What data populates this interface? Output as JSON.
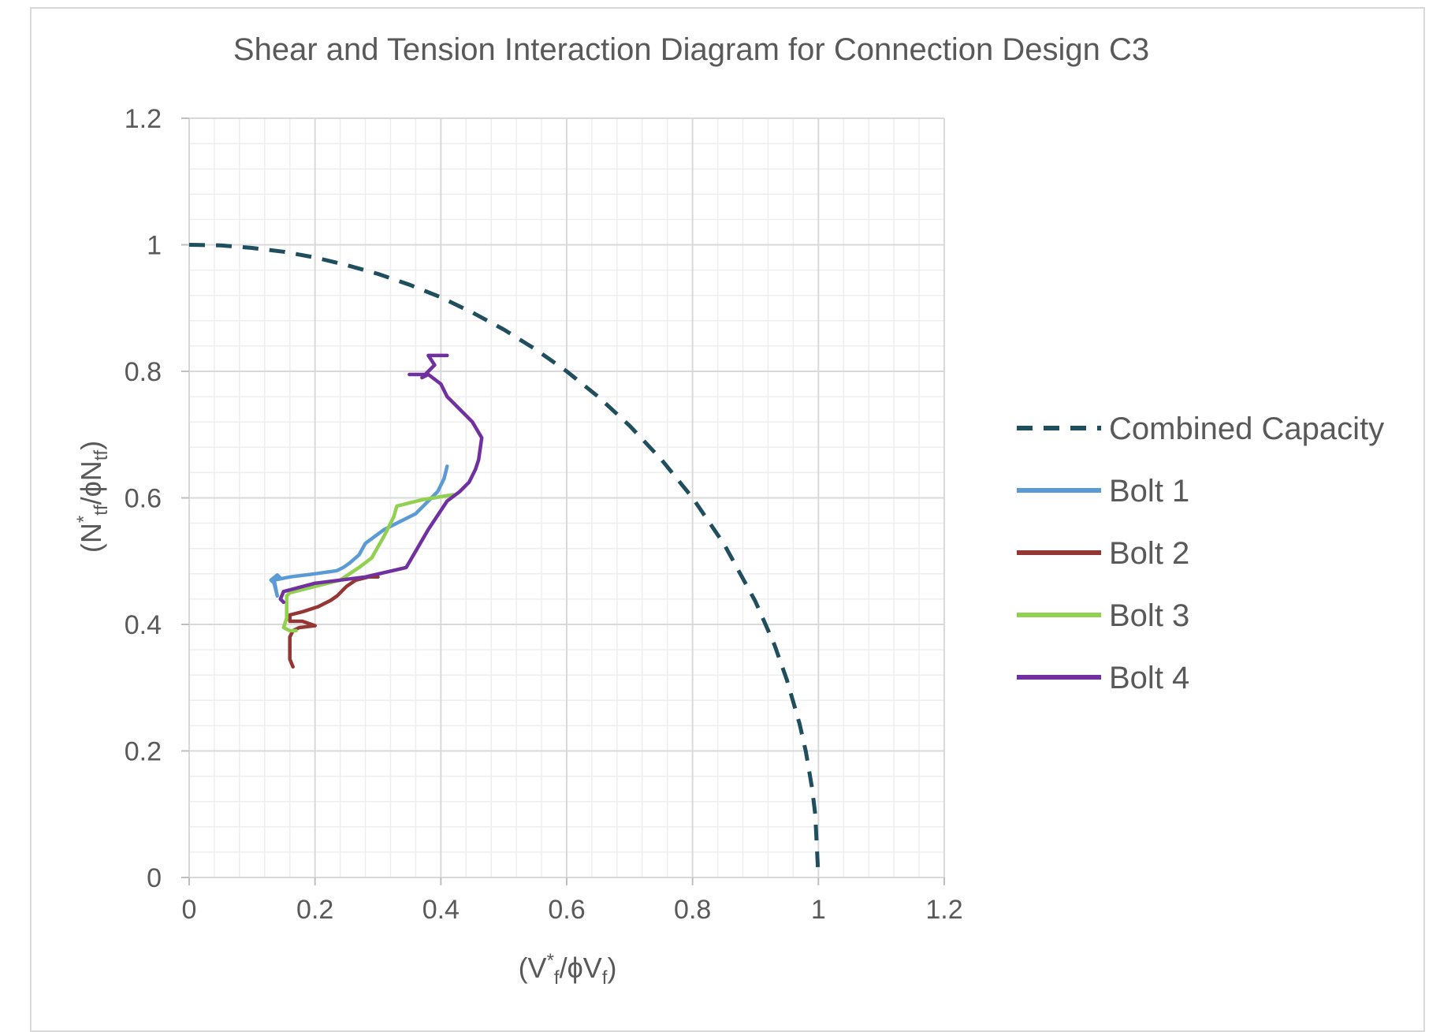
{
  "chart_data": {
    "type": "line",
    "title": "Shear and Tension Interaction Diagram for Connection Design C3",
    "xlabel": {
      "open": "(V",
      "sup": "*",
      "sub": "f",
      "mid": "/ϕV",
      "sub2": "f",
      "close": ")"
    },
    "ylabel": {
      "open": "(N",
      "sup": "*",
      "sub": "tf",
      "mid": "/ϕN",
      "sub2": "tf",
      "close": ")"
    },
    "xlim": [
      0,
      1.2
    ],
    "ylim": [
      0,
      1.2
    ],
    "x_ticks": [
      0,
      0.2,
      0.4,
      0.6,
      0.8,
      1,
      1.2
    ],
    "y_ticks": [
      0,
      0.2,
      0.4,
      0.6,
      0.8,
      1,
      1.2
    ],
    "x_tick_labels": [
      "0",
      "0.2",
      "0.4",
      "0.6",
      "0.8",
      "1",
      "1.2"
    ],
    "y_tick_labels": [
      "0",
      "0.2",
      "0.4",
      "0.6",
      "0.8",
      "1",
      "1.2"
    ],
    "major_grid_step": 0.2,
    "minor_grid_step": 0.04,
    "grid": true,
    "legend_position": "right",
    "series": [
      {
        "name": "Combined Capacity",
        "color": "#1f4e5f",
        "dash": true,
        "x": [
          0,
          0.05,
          0.1,
          0.15,
          0.2,
          0.25,
          0.3,
          0.35,
          0.4,
          0.45,
          0.5,
          0.55,
          0.6,
          0.65,
          0.7,
          0.75,
          0.8,
          0.85,
          0.9,
          0.93,
          0.95,
          0.97,
          0.98,
          0.99,
          0.995,
          1.0
        ],
        "y": [
          1.0,
          0.999,
          0.995,
          0.989,
          0.98,
          0.968,
          0.954,
          0.937,
          0.917,
          0.893,
          0.866,
          0.835,
          0.8,
          0.76,
          0.714,
          0.661,
          0.6,
          0.527,
          0.436,
          0.368,
          0.312,
          0.243,
          0.199,
          0.141,
          0.1,
          0.0
        ]
      },
      {
        "name": "Bolt 1",
        "color": "#5b9bd5",
        "dash": false,
        "x": [
          0.41,
          0.405,
          0.395,
          0.38,
          0.36,
          0.34,
          0.31,
          0.28,
          0.27,
          0.255,
          0.245,
          0.235,
          0.2,
          0.16,
          0.135,
          0.14,
          0.135,
          0.13,
          0.14,
          0.145
        ],
        "y": [
          0.65,
          0.63,
          0.61,
          0.595,
          0.575,
          0.565,
          0.55,
          0.528,
          0.51,
          0.497,
          0.49,
          0.485,
          0.48,
          0.475,
          0.47,
          0.445,
          0.465,
          0.47,
          0.478,
          0.473
        ]
      },
      {
        "name": "Bolt 2",
        "color": "#943634",
        "dash": false,
        "x": [
          0.3,
          0.285,
          0.265,
          0.25,
          0.235,
          0.225,
          0.205,
          0.18,
          0.16,
          0.16,
          0.18,
          0.2,
          0.175,
          0.165,
          0.16,
          0.16,
          0.165
        ],
        "y": [
          0.475,
          0.475,
          0.47,
          0.46,
          0.445,
          0.438,
          0.428,
          0.42,
          0.415,
          0.405,
          0.405,
          0.398,
          0.395,
          0.39,
          0.38,
          0.345,
          0.333
        ]
      },
      {
        "name": "Bolt 3",
        "color": "#92d050",
        "dash": false,
        "x": [
          0.42,
          0.37,
          0.33,
          0.325,
          0.31,
          0.29,
          0.27,
          0.24,
          0.2,
          0.16,
          0.155,
          0.155,
          0.15,
          0.16,
          0.17
        ],
        "y": [
          0.605,
          0.597,
          0.587,
          0.57,
          0.54,
          0.505,
          0.49,
          0.47,
          0.46,
          0.45,
          0.445,
          0.41,
          0.395,
          0.39,
          0.39
        ]
      },
      {
        "name": "Bolt 4",
        "color": "#7030a0",
        "dash": false,
        "x": [
          0.41,
          0.38,
          0.39,
          0.37,
          0.38,
          0.35,
          0.38,
          0.4,
          0.41,
          0.43,
          0.45,
          0.465,
          0.46,
          0.455,
          0.445,
          0.43,
          0.41,
          0.38,
          0.345,
          0.28,
          0.2,
          0.15,
          0.145,
          0.15
        ],
        "y": [
          0.825,
          0.825,
          0.81,
          0.79,
          0.795,
          0.795,
          0.795,
          0.78,
          0.76,
          0.74,
          0.72,
          0.695,
          0.66,
          0.645,
          0.625,
          0.61,
          0.595,
          0.55,
          0.49,
          0.475,
          0.465,
          0.452,
          0.44,
          0.435
        ]
      }
    ]
  }
}
